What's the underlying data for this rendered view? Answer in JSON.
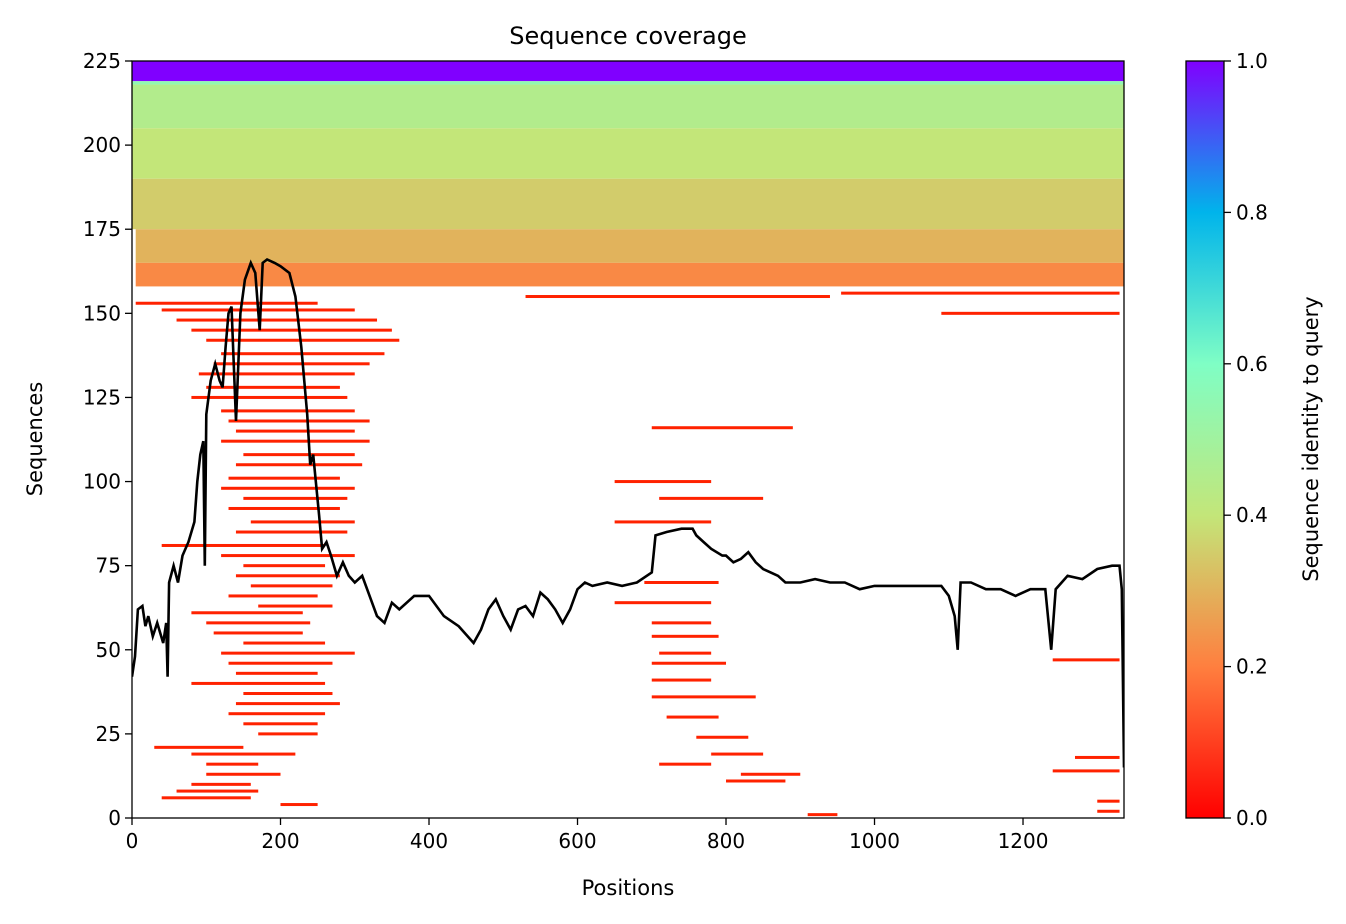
{
  "chart_data": {
    "type": "heatmap",
    "title": "Sequence coverage",
    "xlabel": "Positions",
    "ylabel": "Sequences",
    "xlim": [
      0,
      1336
    ],
    "ylim": [
      0,
      225
    ],
    "x_ticks": [
      0,
      200,
      400,
      600,
      800,
      1000,
      1200
    ],
    "y_ticks": [
      0,
      25,
      50,
      75,
      100,
      125,
      150,
      175,
      200,
      225
    ],
    "colorbar": {
      "label": "Sequence identity to query",
      "range": [
        0.0,
        1.0
      ],
      "ticks": [
        "0.0",
        "0.2",
        "0.4",
        "0.6",
        "0.8",
        "1.0"
      ],
      "colormap": "rainbow",
      "stops": [
        "#ff0000",
        "#ff7f3f",
        "#c3e679",
        "#7ffec5",
        "#00b4eb",
        "#8000ff"
      ]
    },
    "coverage_blocks": [
      {
        "x0": 0,
        "x1": 1336,
        "y0": 219,
        "y1": 225,
        "identity": 1.0
      },
      {
        "x0": 0,
        "x1": 1336,
        "y0": 218,
        "y1": 219,
        "identity": 0.55
      },
      {
        "x0": 0,
        "x1": 1336,
        "y0": 205,
        "y1": 218,
        "identity": 0.45
      },
      {
        "x0": 0,
        "x1": 1336,
        "y0": 190,
        "y1": 205,
        "identity": 0.4
      },
      {
        "x0": 0,
        "x1": 1336,
        "y0": 175,
        "y1": 190,
        "identity": 0.35
      },
      {
        "x0": 5,
        "x1": 1336,
        "y0": 165,
        "y1": 175,
        "identity": 0.3
      },
      {
        "x0": 5,
        "x1": 1336,
        "y0": 158,
        "y1": 165,
        "identity": 0.22
      }
    ],
    "red_segments": [
      [
        530,
        940,
        155
      ],
      [
        955,
        1330,
        156
      ],
      [
        1090,
        1330,
        150
      ],
      [
        5,
        250,
        153
      ],
      [
        40,
        300,
        151
      ],
      [
        60,
        330,
        148
      ],
      [
        80,
        350,
        145
      ],
      [
        100,
        360,
        142
      ],
      [
        120,
        340,
        138
      ],
      [
        110,
        320,
        135
      ],
      [
        90,
        300,
        132
      ],
      [
        100,
        280,
        128
      ],
      [
        80,
        290,
        125
      ],
      [
        120,
        300,
        121
      ],
      [
        130,
        320,
        118
      ],
      [
        140,
        300,
        115
      ],
      [
        120,
        320,
        112
      ],
      [
        150,
        300,
        108
      ],
      [
        140,
        310,
        105
      ],
      [
        130,
        280,
        101
      ],
      [
        120,
        300,
        98
      ],
      [
        150,
        290,
        95
      ],
      [
        130,
        280,
        92
      ],
      [
        160,
        300,
        88
      ],
      [
        140,
        290,
        85
      ],
      [
        40,
        260,
        81
      ],
      [
        120,
        300,
        78
      ],
      [
        150,
        260,
        75
      ],
      [
        140,
        280,
        72
      ],
      [
        160,
        270,
        69
      ],
      [
        130,
        250,
        66
      ],
      [
        170,
        270,
        63
      ],
      [
        80,
        230,
        61
      ],
      [
        100,
        240,
        58
      ],
      [
        110,
        230,
        55
      ],
      [
        150,
        260,
        52
      ],
      [
        120,
        300,
        49
      ],
      [
        130,
        270,
        46
      ],
      [
        140,
        250,
        43
      ],
      [
        80,
        260,
        40
      ],
      [
        150,
        270,
        37
      ],
      [
        140,
        280,
        34
      ],
      [
        130,
        260,
        31
      ],
      [
        150,
        250,
        28
      ],
      [
        170,
        250,
        25
      ],
      [
        30,
        150,
        21
      ],
      [
        80,
        220,
        19
      ],
      [
        100,
        170,
        16
      ],
      [
        100,
        200,
        13
      ],
      [
        80,
        160,
        10
      ],
      [
        60,
        170,
        8
      ],
      [
        40,
        160,
        6
      ],
      [
        200,
        250,
        4
      ],
      [
        700,
        890,
        116
      ],
      [
        650,
        780,
        100
      ],
      [
        710,
        850,
        95
      ],
      [
        650,
        780,
        88
      ],
      [
        690,
        790,
        70
      ],
      [
        650,
        780,
        64
      ],
      [
        700,
        780,
        58
      ],
      [
        700,
        790,
        54
      ],
      [
        710,
        780,
        49
      ],
      [
        700,
        800,
        46
      ],
      [
        700,
        780,
        41
      ],
      [
        700,
        840,
        36
      ],
      [
        720,
        790,
        30
      ],
      [
        760,
        830,
        24
      ],
      [
        780,
        850,
        19
      ],
      [
        710,
        780,
        16
      ],
      [
        820,
        900,
        13
      ],
      [
        800,
        880,
        11
      ],
      [
        1240,
        1330,
        47
      ],
      [
        1270,
        1330,
        18
      ],
      [
        1240,
        1330,
        14
      ],
      [
        1300,
        1330,
        5
      ],
      [
        1300,
        1330,
        2
      ],
      [
        910,
        950,
        1
      ]
    ],
    "series": [
      {
        "name": "",
        "points": [
          [
            0,
            42
          ],
          [
            4,
            48
          ],
          [
            8,
            62
          ],
          [
            14,
            63
          ],
          [
            18,
            57
          ],
          [
            22,
            60
          ],
          [
            28,
            54
          ],
          [
            34,
            58
          ],
          [
            42,
            52
          ],
          [
            46,
            58
          ],
          [
            48,
            42
          ],
          [
            50,
            70
          ],
          [
            56,
            75
          ],
          [
            62,
            70
          ],
          [
            68,
            78
          ],
          [
            76,
            82
          ],
          [
            84,
            88
          ],
          [
            88,
            100
          ],
          [
            92,
            108
          ],
          [
            96,
            112
          ],
          [
            98,
            75
          ],
          [
            100,
            120
          ],
          [
            106,
            130
          ],
          [
            112,
            135
          ],
          [
            118,
            130
          ],
          [
            122,
            128
          ],
          [
            126,
            140
          ],
          [
            130,
            150
          ],
          [
            134,
            152
          ],
          [
            140,
            118
          ],
          [
            146,
            150
          ],
          [
            152,
            160
          ],
          [
            160,
            165
          ],
          [
            166,
            162
          ],
          [
            172,
            145
          ],
          [
            176,
            165
          ],
          [
            182,
            166
          ],
          [
            192,
            165
          ],
          [
            200,
            164
          ],
          [
            212,
            162
          ],
          [
            220,
            155
          ],
          [
            228,
            140
          ],
          [
            236,
            120
          ],
          [
            240,
            105
          ],
          [
            244,
            108
          ],
          [
            252,
            90
          ],
          [
            256,
            80
          ],
          [
            262,
            82
          ],
          [
            268,
            78
          ],
          [
            276,
            72
          ],
          [
            284,
            76
          ],
          [
            292,
            72
          ],
          [
            300,
            70
          ],
          [
            310,
            72
          ],
          [
            320,
            66
          ],
          [
            330,
            60
          ],
          [
            340,
            58
          ],
          [
            350,
            64
          ],
          [
            360,
            62
          ],
          [
            380,
            66
          ],
          [
            400,
            66
          ],
          [
            420,
            60
          ],
          [
            440,
            57
          ],
          [
            460,
            52
          ],
          [
            470,
            56
          ],
          [
            480,
            62
          ],
          [
            490,
            65
          ],
          [
            500,
            60
          ],
          [
            510,
            56
          ],
          [
            520,
            62
          ],
          [
            530,
            63
          ],
          [
            540,
            60
          ],
          [
            550,
            67
          ],
          [
            560,
            65
          ],
          [
            570,
            62
          ],
          [
            580,
            58
          ],
          [
            590,
            62
          ],
          [
            600,
            68
          ],
          [
            610,
            70
          ],
          [
            620,
            69
          ],
          [
            640,
            70
          ],
          [
            660,
            69
          ],
          [
            680,
            70
          ],
          [
            700,
            73
          ],
          [
            705,
            84
          ],
          [
            720,
            85
          ],
          [
            740,
            86
          ],
          [
            755,
            86
          ],
          [
            760,
            84
          ],
          [
            770,
            82
          ],
          [
            780,
            80
          ],
          [
            795,
            78
          ],
          [
            800,
            78
          ],
          [
            810,
            76
          ],
          [
            820,
            77
          ],
          [
            830,
            79
          ],
          [
            840,
            76
          ],
          [
            850,
            74
          ],
          [
            860,
            73
          ],
          [
            870,
            72
          ],
          [
            880,
            70
          ],
          [
            900,
            70
          ],
          [
            920,
            71
          ],
          [
            940,
            70
          ],
          [
            960,
            70
          ],
          [
            980,
            68
          ],
          [
            1000,
            69
          ],
          [
            1020,
            69
          ],
          [
            1040,
            69
          ],
          [
            1060,
            69
          ],
          [
            1080,
            69
          ],
          [
            1090,
            69
          ],
          [
            1100,
            66
          ],
          [
            1108,
            60
          ],
          [
            1112,
            50
          ],
          [
            1116,
            70
          ],
          [
            1130,
            70
          ],
          [
            1150,
            68
          ],
          [
            1170,
            68
          ],
          [
            1190,
            66
          ],
          [
            1210,
            68
          ],
          [
            1230,
            68
          ],
          [
            1238,
            50
          ],
          [
            1244,
            68
          ],
          [
            1260,
            72
          ],
          [
            1280,
            71
          ],
          [
            1300,
            74
          ],
          [
            1320,
            75
          ],
          [
            1330,
            75
          ],
          [
            1333,
            68
          ],
          [
            1336,
            15
          ]
        ]
      }
    ]
  }
}
